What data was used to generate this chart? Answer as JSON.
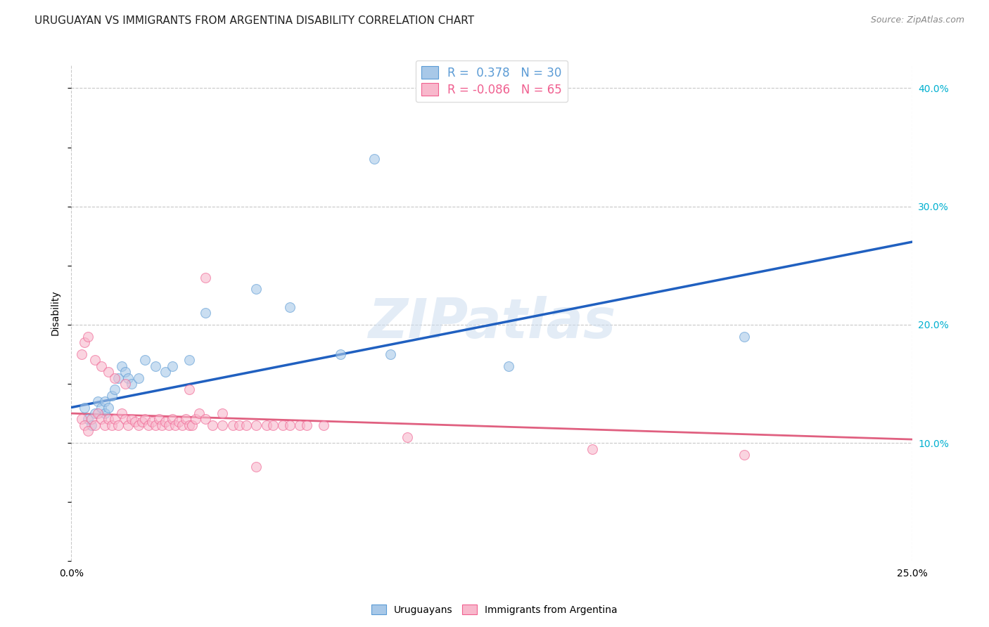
{
  "title": "URUGUAYAN VS IMMIGRANTS FROM ARGENTINA DISABILITY CORRELATION CHART",
  "source": "Source: ZipAtlas.com",
  "ylabel": "Disability",
  "xlim": [
    0.0,
    0.25
  ],
  "ylim": [
    0.0,
    0.42
  ],
  "yticks": [
    0.1,
    0.2,
    0.3,
    0.4
  ],
  "legend_entries": [
    {
      "label": "R =  0.378   N = 30",
      "color": "#5b9bd5"
    },
    {
      "label": "R = -0.086   N = 65",
      "color": "#f06090"
    }
  ],
  "blue_scatter_x": [
    0.004,
    0.005,
    0.006,
    0.007,
    0.008,
    0.009,
    0.01,
    0.01,
    0.011,
    0.012,
    0.013,
    0.014,
    0.015,
    0.016,
    0.017,
    0.018,
    0.02,
    0.022,
    0.025,
    0.028,
    0.03,
    0.035,
    0.04,
    0.055,
    0.065,
    0.08,
    0.095,
    0.13,
    0.2,
    0.09
  ],
  "blue_scatter_y": [
    0.13,
    0.12,
    0.115,
    0.125,
    0.135,
    0.13,
    0.135,
    0.125,
    0.13,
    0.14,
    0.145,
    0.155,
    0.165,
    0.16,
    0.155,
    0.15,
    0.155,
    0.17,
    0.165,
    0.16,
    0.165,
    0.17,
    0.21,
    0.23,
    0.215,
    0.175,
    0.175,
    0.165,
    0.19,
    0.34
  ],
  "pink_scatter_x": [
    0.003,
    0.004,
    0.005,
    0.006,
    0.007,
    0.008,
    0.009,
    0.01,
    0.011,
    0.012,
    0.013,
    0.014,
    0.015,
    0.016,
    0.017,
    0.018,
    0.019,
    0.02,
    0.021,
    0.022,
    0.023,
    0.024,
    0.025,
    0.026,
    0.027,
    0.028,
    0.029,
    0.03,
    0.031,
    0.032,
    0.033,
    0.034,
    0.035,
    0.036,
    0.037,
    0.038,
    0.04,
    0.042,
    0.045,
    0.048,
    0.05,
    0.052,
    0.055,
    0.058,
    0.06,
    0.063,
    0.065,
    0.068,
    0.07,
    0.075,
    0.003,
    0.004,
    0.005,
    0.007,
    0.009,
    0.011,
    0.013,
    0.016,
    0.035,
    0.045,
    0.055,
    0.1,
    0.155,
    0.2,
    0.04
  ],
  "pink_scatter_y": [
    0.12,
    0.115,
    0.11,
    0.12,
    0.115,
    0.125,
    0.12,
    0.115,
    0.12,
    0.115,
    0.12,
    0.115,
    0.125,
    0.12,
    0.115,
    0.12,
    0.118,
    0.115,
    0.118,
    0.12,
    0.115,
    0.118,
    0.115,
    0.12,
    0.115,
    0.118,
    0.115,
    0.12,
    0.115,
    0.118,
    0.115,
    0.12,
    0.115,
    0.115,
    0.12,
    0.125,
    0.12,
    0.115,
    0.115,
    0.115,
    0.115,
    0.115,
    0.115,
    0.115,
    0.115,
    0.115,
    0.115,
    0.115,
    0.115,
    0.115,
    0.175,
    0.185,
    0.19,
    0.17,
    0.165,
    0.16,
    0.155,
    0.15,
    0.145,
    0.125,
    0.08,
    0.105,
    0.095,
    0.09,
    0.24
  ],
  "blue_line_x": [
    0.0,
    0.25
  ],
  "blue_line_y": [
    0.13,
    0.27
  ],
  "pink_line_x": [
    0.0,
    0.25
  ],
  "pink_line_y": [
    0.125,
    0.103
  ],
  "scatter_size": 100,
  "scatter_alpha": 0.6,
  "blue_dot_color": "#a8c8e8",
  "blue_edge_color": "#5b9bd5",
  "pink_dot_color": "#f8b8cc",
  "pink_edge_color": "#f06090",
  "blue_line_color": "#2060c0",
  "pink_line_color": "#e06080",
  "watermark": "ZIPatlas",
  "background_color": "#ffffff",
  "grid_color": "#c8c8c8",
  "right_tick_color": "#00b0d0",
  "title_fontsize": 11,
  "source_fontsize": 9,
  "axis_label_fontsize": 10,
  "tick_fontsize": 10,
  "legend_fontsize": 12
}
